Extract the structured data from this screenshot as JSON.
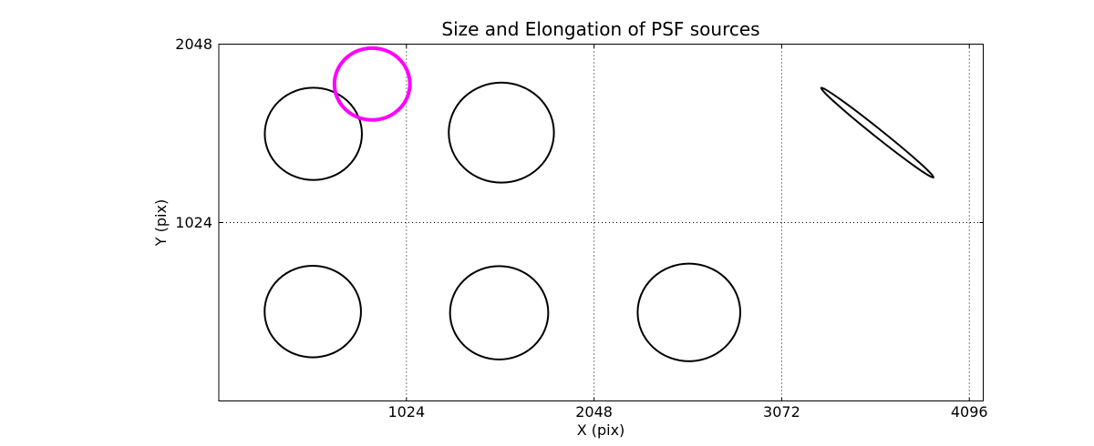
{
  "chart_data": {
    "type": "scatter",
    "marker": "ellipse",
    "title": "Size and Elongation of PSF sources",
    "xlabel": "X (pix)",
    "ylabel": "Y (pix)",
    "xlim": [
      0,
      4172
    ],
    "ylim": [
      0,
      2048
    ],
    "xticks": [
      1024,
      2048,
      3072,
      4096
    ],
    "yticks": [
      1024,
      2048
    ],
    "grid": {
      "visible": true,
      "style": "dotted",
      "color": "#000000"
    },
    "axis_color": "#000000",
    "background_color": "#ffffff",
    "highlight_color": "#ff00ff",
    "ellipses": [
      {
        "x": 516,
        "y": 1533,
        "semi_major": 265,
        "semi_minor": 265,
        "angle_deg": 0,
        "color": "#000000",
        "linewidth": 2,
        "note": "round source"
      },
      {
        "x": 1542,
        "y": 1540,
        "semi_major": 287,
        "semi_minor": 287,
        "angle_deg": 0,
        "color": "#000000",
        "linewidth": 2,
        "note": "round source"
      },
      {
        "x": 3594,
        "y": 1540,
        "semi_major": 400,
        "semi_minor": 23,
        "angle_deg": -40,
        "color": "#000000",
        "linewidth": 2,
        "note": "elongated source"
      },
      {
        "x": 513,
        "y": 513,
        "semi_major": 263,
        "semi_minor": 263,
        "angle_deg": 0,
        "color": "#000000",
        "linewidth": 2,
        "note": "round source"
      },
      {
        "x": 1530,
        "y": 506,
        "semi_major": 268,
        "semi_minor": 268,
        "angle_deg": 0,
        "color": "#000000",
        "linewidth": 2,
        "note": "round source"
      },
      {
        "x": 2566,
        "y": 508,
        "semi_major": 280,
        "semi_minor": 280,
        "angle_deg": 0,
        "color": "#000000",
        "linewidth": 2,
        "note": "round source"
      },
      {
        "x": 837,
        "y": 1819,
        "semi_major": 206,
        "semi_minor": 206,
        "angle_deg": 0,
        "color": "#ff00ff",
        "linewidth": 4,
        "note": "highlighted round source"
      }
    ]
  }
}
